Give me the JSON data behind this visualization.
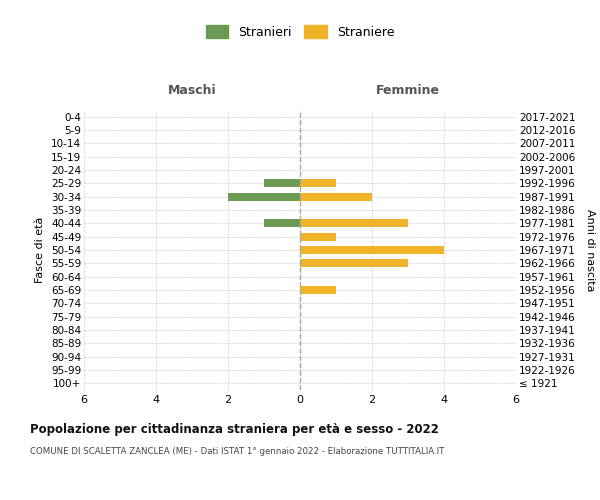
{
  "age_groups": [
    "100+",
    "95-99",
    "90-94",
    "85-89",
    "80-84",
    "75-79",
    "70-74",
    "65-69",
    "60-64",
    "55-59",
    "50-54",
    "45-49",
    "40-44",
    "35-39",
    "30-34",
    "25-29",
    "20-24",
    "15-19",
    "10-14",
    "5-9",
    "0-4"
  ],
  "birth_years": [
    "≤ 1921",
    "1922-1926",
    "1927-1931",
    "1932-1936",
    "1937-1941",
    "1942-1946",
    "1947-1951",
    "1952-1956",
    "1957-1961",
    "1962-1966",
    "1967-1971",
    "1972-1976",
    "1977-1981",
    "1982-1986",
    "1987-1991",
    "1992-1996",
    "1997-2001",
    "2002-2006",
    "2007-2011",
    "2012-2016",
    "2017-2021"
  ],
  "stranieri_maschi": [
    0,
    0,
    0,
    0,
    0,
    0,
    0,
    0,
    0,
    0,
    0,
    0,
    1,
    0,
    2,
    1,
    0,
    0,
    0,
    0,
    0
  ],
  "straniere_femmine": [
    0,
    0,
    0,
    0,
    0,
    0,
    0,
    1,
    0,
    3,
    4,
    1,
    3,
    0,
    2,
    1,
    0,
    0,
    0,
    0,
    0
  ],
  "color_maschi": "#6b9a52",
  "color_femmine": "#f0b429",
  "xlim": 6,
  "title": "Popolazione per cittadinanza straniera per età e sesso - 2022",
  "subtitle": "COMUNE DI SCALETTA ZANCLEA (ME) - Dati ISTAT 1° gennaio 2022 - Elaborazione TUTTITALIA.IT",
  "ylabel_left": "Fasce di età",
  "ylabel_right": "Anni di nascita",
  "xlabel_left": "Maschi",
  "xlabel_right": "Femmine",
  "legend_stranieri": "Stranieri",
  "legend_straniere": "Straniere",
  "bg_color": "#ffffff",
  "grid_color": "#d0d0d0"
}
